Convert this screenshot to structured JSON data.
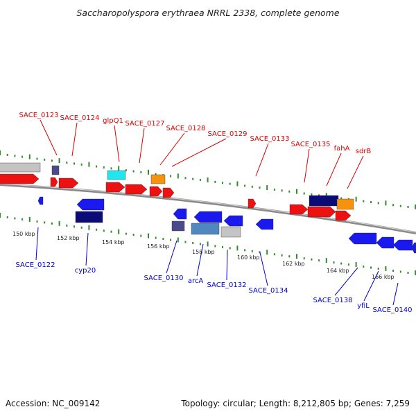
{
  "title": "Saccharopolyspora erythraea NRRL 2338, complete genome",
  "footer": {
    "accession": "Accession: NC_009142",
    "summary": "Topology: circular; Length: 8,212,805 bp; Genes: 7,259"
  },
  "colors": {
    "backbone": "#8a8a8a",
    "tick": "#2e8b2e",
    "forward_label": "#dd0000",
    "reverse_label": "#0000cc",
    "red": "#ee1111",
    "blue": "#1a1aee",
    "navy": "#0b0b78",
    "slate": "#4a4a8c",
    "steel": "#4f88bf",
    "cyan": "#22e6ee",
    "orange": "#f5930f",
    "gray": "#c4c4c4"
  },
  "scale_labels": [
    "150 kbp",
    "152 kbp",
    "154 kbp",
    "156 kbp",
    "158 kbp",
    "160 kbp",
    "162 kbp",
    "164 kbp",
    "166 kbp"
  ],
  "forward_genes": [
    "SACE_0123",
    "SACE_0124",
    "glpQ1",
    "SACE_0127",
    "SACE_0128",
    "SACE_0129",
    "SACE_0133",
    "SACE_0135",
    "fahA",
    "sdrB"
  ],
  "reverse_genes": [
    "SACE_0122",
    "cyp20",
    "SACE_0130",
    "arcA",
    "SACE_0132",
    "SACE_0134",
    "SACE_0138",
    "yfiL",
    "SACE_0140"
  ]
}
